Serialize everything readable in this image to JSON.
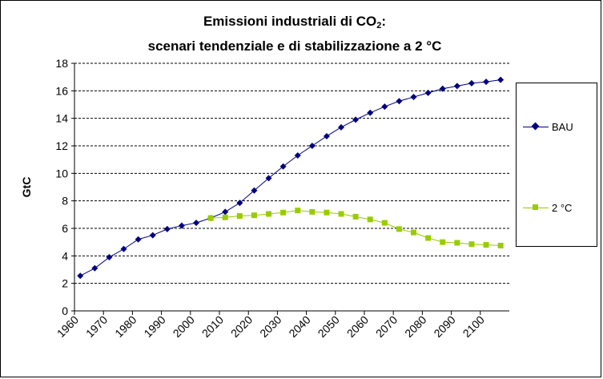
{
  "chart_data": {
    "type": "line",
    "title_line1_pre": "Emissioni industriali di CO",
    "title_sub": "2",
    "title_line1_post": ":",
    "title_line2": "scenari tendenziale e di stabilizzazione a 2 °C",
    "ylabel": "GtC",
    "xlabel": "",
    "ylim": [
      0,
      18
    ],
    "yticks": [
      0,
      2,
      4,
      6,
      8,
      10,
      12,
      14,
      16,
      18
    ],
    "xlim": [
      1960,
      2110
    ],
    "xticks": [
      "1960",
      "1970",
      "1980",
      "1990",
      "2000",
      "2010",
      "2020",
      "2030",
      "2040",
      "2050",
      "2060",
      "2070",
      "2080",
      "2090",
      "2100"
    ],
    "grid": "horizontal dashed",
    "legend_position": "right",
    "series": [
      {
        "name": "BAU",
        "color": "#00007f",
        "marker": "diamond",
        "points": [
          [
            1962,
            2.55
          ],
          [
            1967,
            3.1
          ],
          [
            1972,
            3.9
          ],
          [
            1977,
            4.5
          ],
          [
            1982,
            5.2
          ],
          [
            1987,
            5.5
          ],
          [
            1992,
            5.95
          ],
          [
            1997,
            6.2
          ],
          [
            2002,
            6.4
          ],
          [
            2007,
            6.75
          ],
          [
            2012,
            7.2
          ],
          [
            2017,
            7.85
          ],
          [
            2022,
            8.75
          ],
          [
            2027,
            9.65
          ],
          [
            2032,
            10.5
          ],
          [
            2037,
            11.3
          ],
          [
            2042,
            12.0
          ],
          [
            2047,
            12.7
          ],
          [
            2052,
            13.35
          ],
          [
            2057,
            13.9
          ],
          [
            2062,
            14.4
          ],
          [
            2067,
            14.85
          ],
          [
            2072,
            15.25
          ],
          [
            2077,
            15.55
          ],
          [
            2082,
            15.85
          ],
          [
            2087,
            16.15
          ],
          [
            2092,
            16.35
          ],
          [
            2097,
            16.55
          ],
          [
            2102,
            16.65
          ],
          [
            2107,
            16.8
          ]
        ]
      },
      {
        "name": "2 °C",
        "color": "#99cc00",
        "marker": "square",
        "points": [
          [
            2007,
            6.75
          ],
          [
            2012,
            6.8
          ],
          [
            2017,
            6.9
          ],
          [
            2022,
            6.95
          ],
          [
            2027,
            7.05
          ],
          [
            2032,
            7.15
          ],
          [
            2037,
            7.3
          ],
          [
            2042,
            7.2
          ],
          [
            2047,
            7.15
          ],
          [
            2052,
            7.05
          ],
          [
            2057,
            6.85
          ],
          [
            2062,
            6.65
          ],
          [
            2067,
            6.4
          ],
          [
            2072,
            5.95
          ],
          [
            2077,
            5.7
          ],
          [
            2082,
            5.3
          ],
          [
            2087,
            5.0
          ],
          [
            2092,
            4.95
          ],
          [
            2097,
            4.85
          ],
          [
            2102,
            4.8
          ],
          [
            2107,
            4.75
          ]
        ]
      }
    ]
  }
}
